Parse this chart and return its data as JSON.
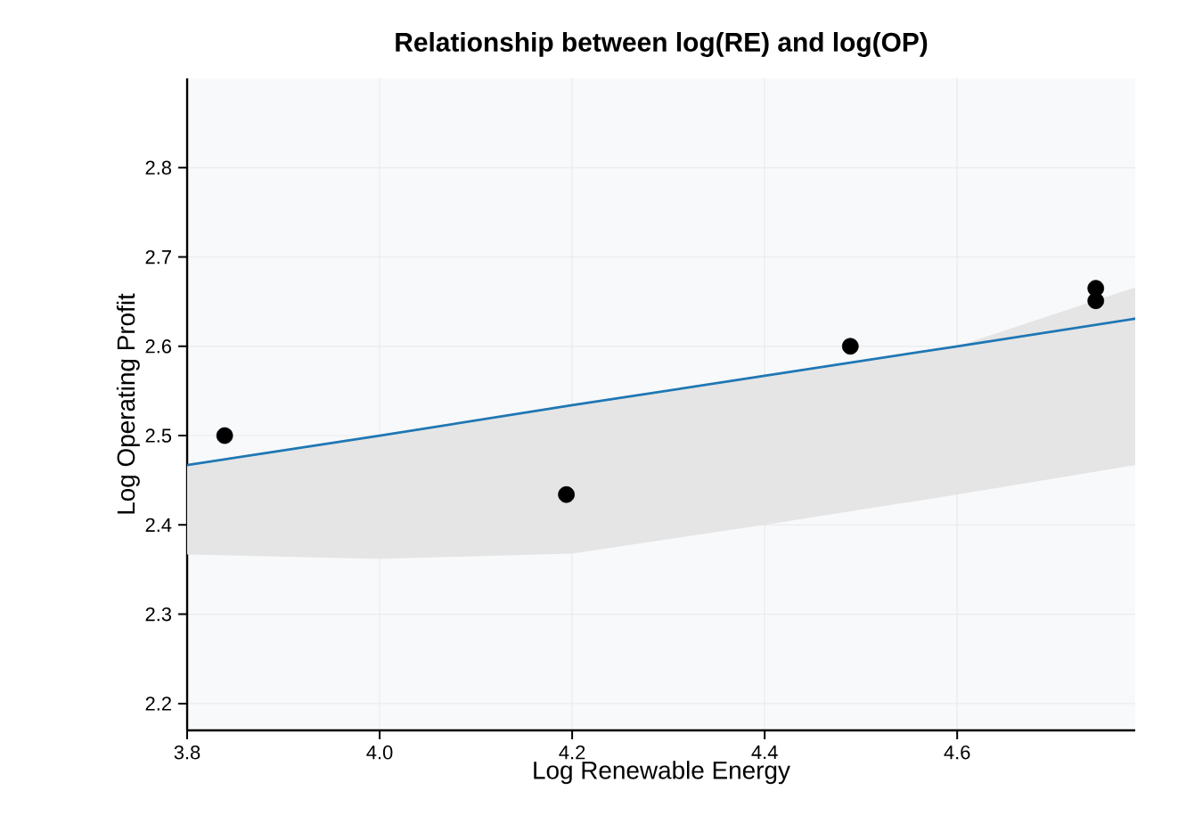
{
  "chart_data": {
    "type": "scatter",
    "title": "Relationship between log(RE) and log(OP)",
    "xlabel": "Log Renewable Energy",
    "ylabel": "Log Operating Profit",
    "xlim": [
      3.8,
      4.785
    ],
    "ylim": [
      2.17,
      2.9
    ],
    "xticks": [
      3.8,
      {
        "value": 4.0,
        "label": "4.0"
      },
      4.2,
      4.4,
      4.6
    ],
    "yticks": [
      2.2,
      2.3,
      2.4,
      2.5,
      2.6,
      2.7,
      2.8
    ],
    "grid": true,
    "series": [
      {
        "color": "#000000",
        "marker": "circle",
        "x": [
          3.839,
          4.194,
          4.489,
          4.744,
          4.744
        ],
        "values": [
          2.5,
          2.434,
          2.6,
          2.665,
          2.651
        ]
      },
      {
        "type": "line",
        "color": "#1f77b4",
        "x": [
          3.8,
          4.0,
          4.2,
          4.4,
          4.6,
          4.785
        ],
        "values": [
          2.467,
          2.5,
          2.534,
          2.567,
          2.6,
          2.631
        ],
        "lower": [
          2.367,
          2.362,
          2.368,
          2.4,
          2.434,
          2.467
        ],
        "upper": [
          2.467,
          2.5,
          2.534,
          2.567,
          2.6,
          2.666
        ]
      }
    ]
  }
}
